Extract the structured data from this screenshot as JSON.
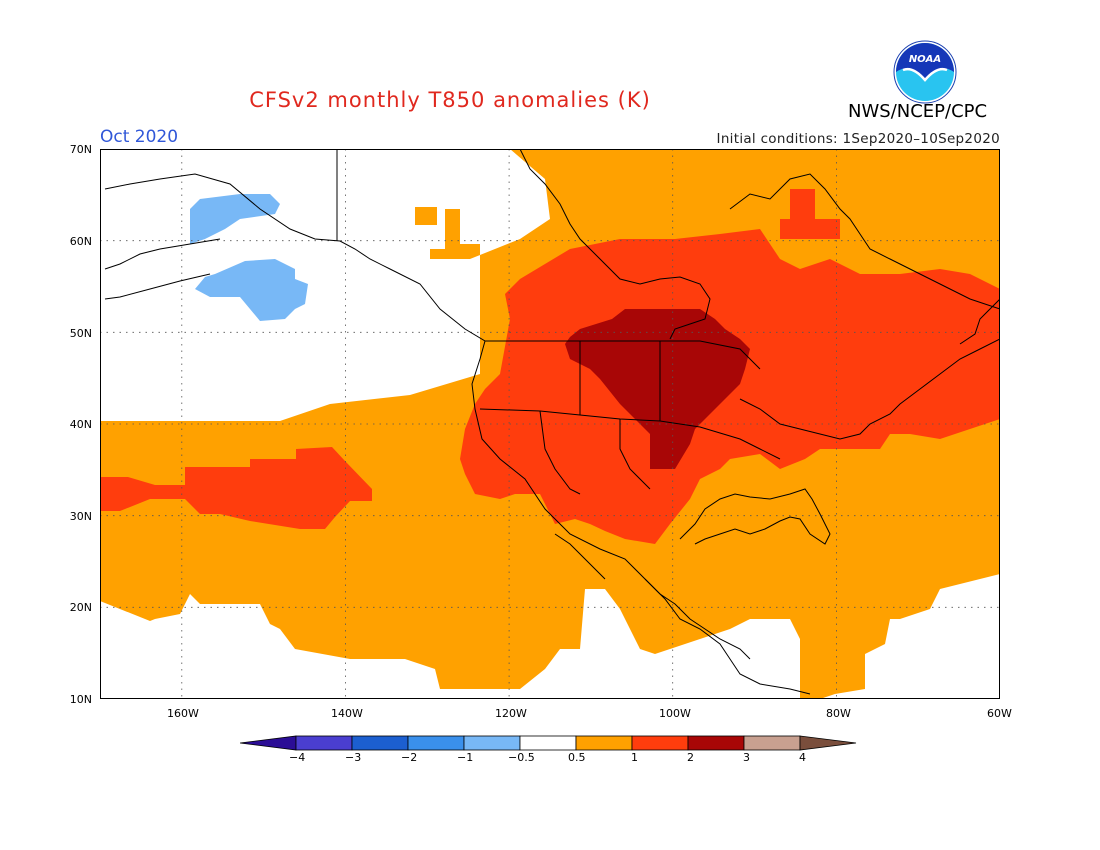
{
  "header": {
    "title": "CFSv2 monthly T850 anomalies (K)",
    "month": "Oct 2020",
    "initial_conditions": "Initial conditions: 1Sep2020–10Sep2020",
    "agency": "NWS/NCEP/CPC",
    "logo_text": "NOAA"
  },
  "map": {
    "lat_labels": [
      "70N",
      "60N",
      "50N",
      "40N",
      "30N",
      "20N",
      "10N"
    ],
    "lon_labels": [
      "160W",
      "140W",
      "120W",
      "100W",
      "80W",
      "60W"
    ],
    "lon_range": [
      -170,
      -60
    ],
    "lat_range": [
      10,
      70
    ]
  },
  "colorbar": {
    "labels": [
      "−4",
      "−3",
      "−2",
      "−1",
      "−0.5",
      "0.5",
      "1",
      "2",
      "3",
      "4"
    ],
    "colors": [
      "#2b0d96",
      "#4a3ed0",
      "#1c5fd0",
      "#3a90ec",
      "#78b8f6",
      "#ffffff",
      "#ffa100",
      "#ff3d0d",
      "#a80606",
      "#c8a090",
      "#7a4e3c"
    ]
  }
}
